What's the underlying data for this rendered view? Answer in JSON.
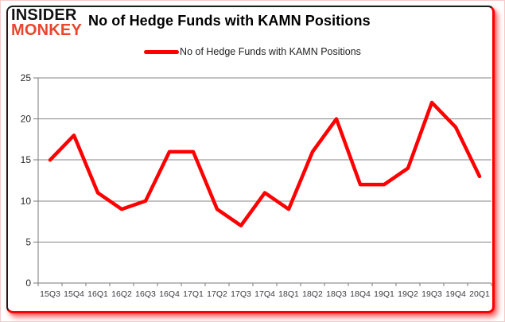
{
  "header": {
    "logo_line1": "INSIDER",
    "logo_line2": "MONKEY",
    "title": "No of Hedge Funds with KAMN Positions"
  },
  "legend": {
    "label": "No of Hedge Funds with KAMN Positions"
  },
  "colors": {
    "series_line": "#fe0000",
    "logo_accent": "#e8462d",
    "logo_dark": "#111111",
    "grid": "#848484",
    "axis": "#7a7a7a",
    "y_label_text": "#262626",
    "x_label_text": "#3c3c44",
    "frame_dark": "#1b1b1b",
    "frame_red": "#fe0000"
  },
  "chart_data": {
    "type": "line",
    "title": "No of Hedge Funds with KAMN Positions",
    "xlabel": "",
    "ylabel": "",
    "categories": [
      "15Q3",
      "15Q4",
      "16Q1",
      "16Q2",
      "16Q3",
      "16Q4",
      "17Q1",
      "17Q2",
      "17Q3",
      "17Q4",
      "18Q1",
      "18Q2",
      "18Q3",
      "18Q4",
      "19Q1",
      "19Q2",
      "19Q3",
      "19Q4",
      "20Q1"
    ],
    "series": [
      {
        "name": "No of Hedge Funds with KAMN Positions",
        "values": [
          15,
          18,
          11,
          9,
          10,
          16,
          16,
          9,
          7,
          11,
          9,
          16,
          20,
          12,
          12,
          14,
          22,
          19,
          13
        ]
      }
    ],
    "ylim": [
      0,
      25
    ],
    "yticks": [
      0,
      5,
      10,
      15,
      20,
      25
    ],
    "grid": true,
    "legend_position": "top"
  }
}
